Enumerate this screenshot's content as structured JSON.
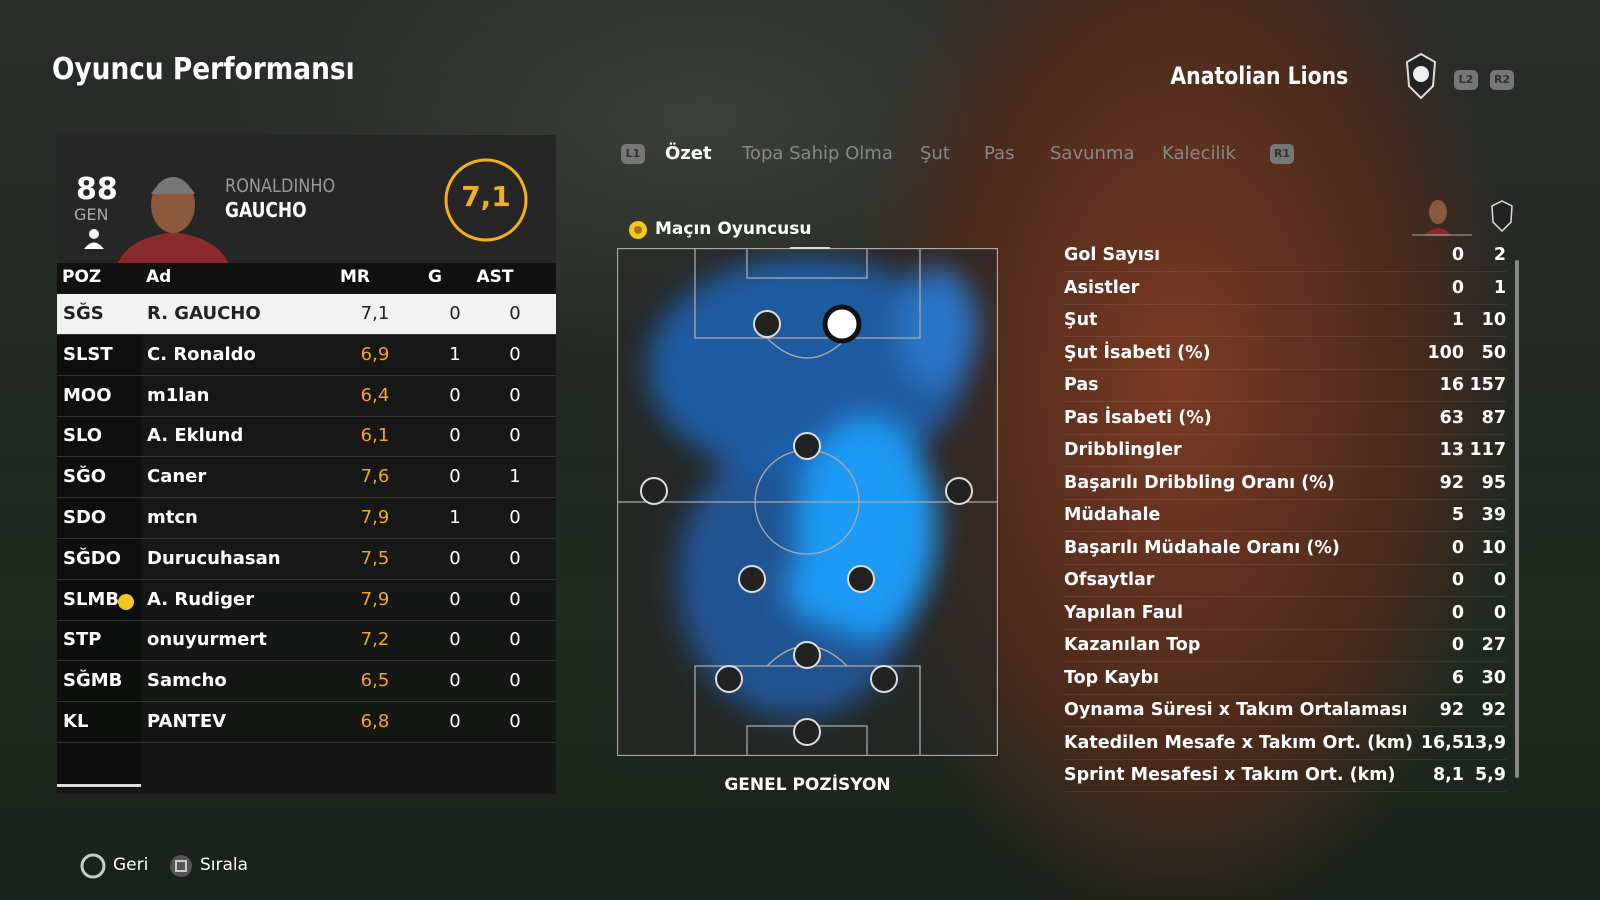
{
  "header": {
    "title": "Oyuncu Performansı",
    "team": "Anatolian Lions",
    "buttons": [
      "L2",
      "R2"
    ]
  },
  "player": {
    "rating": "88",
    "rating_label": "GEN",
    "first_name": "RONALDINHO",
    "last_name": "GAUCHO",
    "score": "7,1"
  },
  "table": {
    "columns": [
      "POZ",
      "Ad",
      "MR",
      "G",
      "AST"
    ],
    "rows": [
      {
        "pos": "SĞS",
        "name": "R. GAUCHO",
        "mr": "7,1",
        "g": "0",
        "ast": "0"
      },
      {
        "pos": "SLST",
        "name": "C. Ronaldo",
        "mr": "6,9",
        "g": "1",
        "ast": "0"
      },
      {
        "pos": "MOO",
        "name": "m1lan",
        "mr": "6,4",
        "g": "0",
        "ast": "0"
      },
      {
        "pos": "SLO",
        "name": "A. Eklund",
        "mr": "6,1",
        "g": "0",
        "ast": "0"
      },
      {
        "pos": "SĞO",
        "name": "Caner",
        "mr": "7,6",
        "g": "0",
        "ast": "1"
      },
      {
        "pos": "SDO",
        "name": "mtcn",
        "mr": "7,9",
        "g": "1",
        "ast": "0"
      },
      {
        "pos": "SĞDO",
        "name": "Durucuhasan",
        "mr": "7,5",
        "g": "0",
        "ast": "0"
      },
      {
        "pos": "SLMB",
        "name": "A. Rudiger",
        "mr": "7,9",
        "g": "0",
        "ast": "0"
      },
      {
        "pos": "STP",
        "name": "onuyurmert",
        "mr": "7,2",
        "g": "0",
        "ast": "0"
      },
      {
        "pos": "SĞMB",
        "name": "Samcho",
        "mr": "6,5",
        "g": "0",
        "ast": "0"
      },
      {
        "pos": "KL",
        "name": "PANTEV",
        "mr": "6,8",
        "g": "0",
        "ast": "0"
      }
    ]
  },
  "tabs": {
    "left_button": "L1",
    "items": [
      "Özet",
      "Topa Sahip Olma",
      "Şut",
      "Pas",
      "Savunma",
      "Kalecilik"
    ],
    "right_button": "R1"
  },
  "heatmap": {
    "badge": "Maçın Oyuncusu",
    "caption": "GENEL POZİSYON"
  },
  "stats": [
    {
      "label": "Gol Sayısı",
      "player": "0",
      "team": "2"
    },
    {
      "label": "Asistler",
      "player": "0",
      "team": "1"
    },
    {
      "label": "Şut",
      "player": "1",
      "team": "10"
    },
    {
      "label": "Şut İsabeti (%)",
      "player": "100",
      "team": "50"
    },
    {
      "label": "Pas",
      "player": "16",
      "team": "157"
    },
    {
      "label": "Pas İsabeti (%)",
      "player": "63",
      "team": "87"
    },
    {
      "label": "Dribblingler",
      "player": "13",
      "team": "117"
    },
    {
      "label": "Başarılı Dribbling Oranı (%)",
      "player": "92",
      "team": "95"
    },
    {
      "label": "Müdahale",
      "player": "5",
      "team": "39"
    },
    {
      "label": "Başarılı Müdahale Oranı (%)",
      "player": "0",
      "team": "10"
    },
    {
      "label": "Ofsaytlar",
      "player": "0",
      "team": "0"
    },
    {
      "label": "Yapılan Faul",
      "player": "0",
      "team": "0"
    },
    {
      "label": "Kazanılan Top",
      "player": "0",
      "team": "27"
    },
    {
      "label": "Top Kaybı",
      "player": "6",
      "team": "30"
    },
    {
      "label": "Oynama Süresi x Takım Ortalaması",
      "player": "92",
      "team": "92"
    },
    {
      "label": "Katedilen Mesafe x Takım Ort. (km)",
      "player": "16,5",
      "team": "13,9"
    },
    {
      "label": "Sprint Mesafesi x Takım Ort. (km)",
      "player": "8,1",
      "team": "5,9"
    }
  ],
  "footer": {
    "buttons": [
      "Geri",
      "Sırala"
    ]
  }
}
